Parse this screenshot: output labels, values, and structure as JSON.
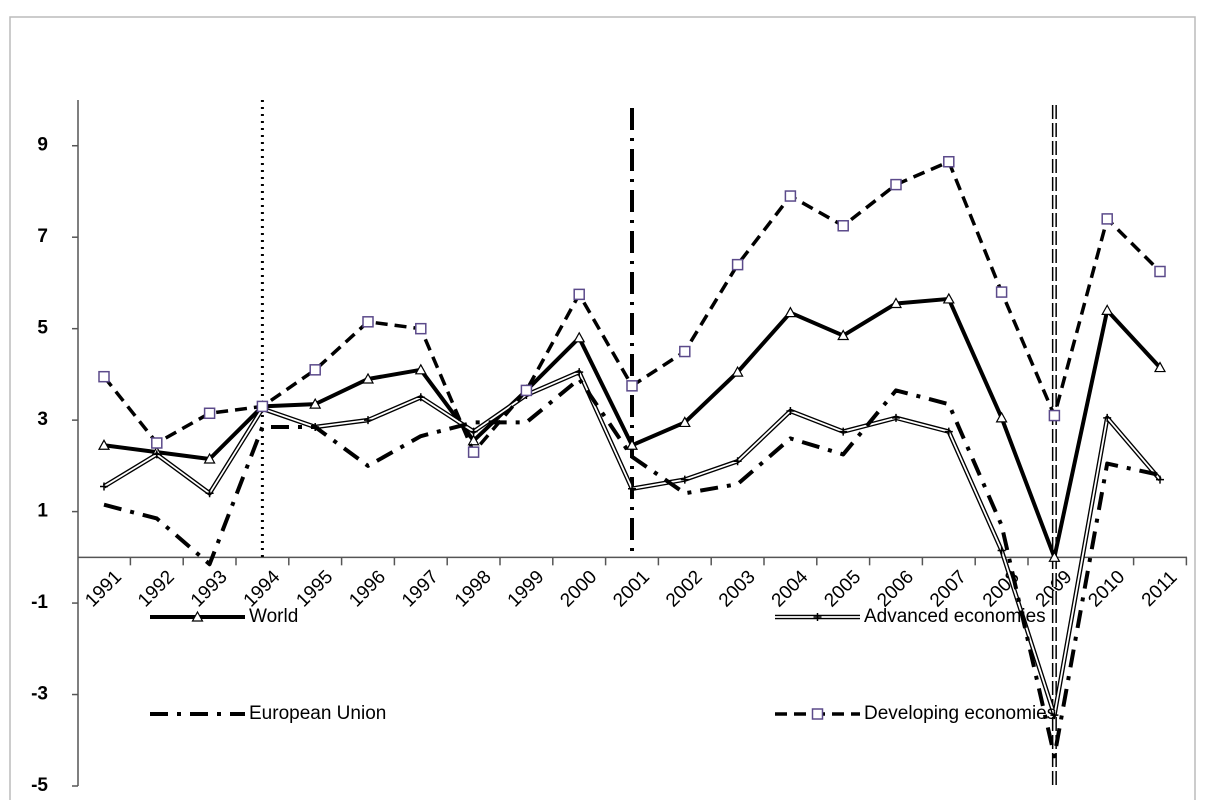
{
  "chart_data": {
    "type": "line",
    "categories": [
      "1991",
      "1992",
      "1993",
      "1994",
      "1995",
      "1996",
      "1997",
      "1998",
      "1999",
      "2000",
      "2001",
      "2002",
      "2003",
      "2004",
      "2005",
      "2006",
      "2007",
      "2008",
      "2009",
      "2010",
      "2011"
    ],
    "series": [
      {
        "name": "World",
        "color": "#000000",
        "style": "solid",
        "marker": "triangle",
        "values": [
          2.45,
          2.3,
          2.15,
          3.3,
          3.35,
          3.9,
          4.1,
          2.55,
          3.65,
          4.8,
          2.45,
          2.95,
          4.05,
          5.35,
          4.85,
          5.55,
          5.65,
          3.05,
          0.0,
          5.4,
          4.15
        ]
      },
      {
        "name": "Advanced economies",
        "color": "#000000",
        "style": "double",
        "marker": "plus",
        "values": [
          1.55,
          2.25,
          1.4,
          3.25,
          2.85,
          3.0,
          3.5,
          2.75,
          3.55,
          4.05,
          1.5,
          1.7,
          2.1,
          3.2,
          2.75,
          3.05,
          2.75,
          0.15,
          -3.45,
          3.05,
          1.7
        ]
      },
      {
        "name": "European Union",
        "color": "#000000",
        "style": "dashdot",
        "marker": "none",
        "values": [
          1.15,
          0.85,
          -0.15,
          2.85,
          2.85,
          2.0,
          2.65,
          2.95,
          2.95,
          3.9,
          2.2,
          1.4,
          1.6,
          2.6,
          2.25,
          3.65,
          3.35,
          0.7,
          -4.35,
          2.05,
          1.8
        ]
      },
      {
        "name": "Developing economies",
        "color": "#000000",
        "style": "dashed",
        "marker": "square",
        "values": [
          3.95,
          2.5,
          3.15,
          3.3,
          4.1,
          5.15,
          5.0,
          2.3,
          3.65,
          5.75,
          3.75,
          4.5,
          6.4,
          7.9,
          7.25,
          8.15,
          8.65,
          5.8,
          3.1,
          7.4,
          6.25
        ]
      }
    ],
    "marker_color": "#5b4a8a",
    "ylim": [
      -5,
      10
    ],
    "yticks": [
      -5,
      -3,
      -1,
      1,
      3,
      5,
      7,
      9
    ],
    "vertical_markers": [
      {
        "category": 3,
        "style": "dotted"
      },
      {
        "category": 10,
        "style": "dashdot"
      },
      {
        "category": 18,
        "style": "double"
      }
    ],
    "legend": "bottom"
  }
}
